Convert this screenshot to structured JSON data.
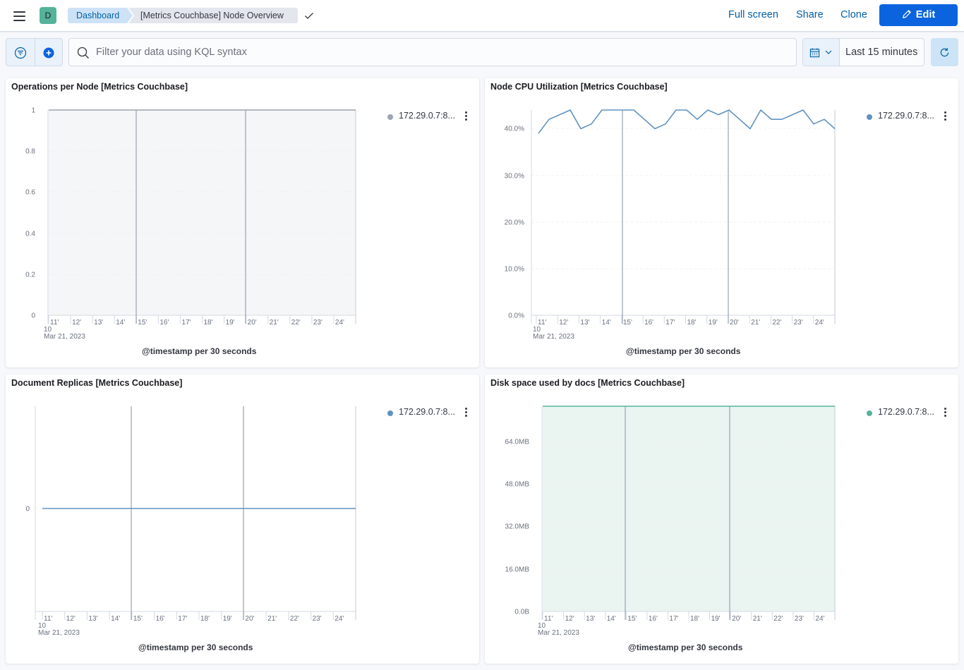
{
  "header": {
    "avatar_letter": "D",
    "breadcrumbs": [
      "Dashboard",
      "[Metrics Couchbase] Node Overview"
    ],
    "links": {
      "full_screen": "Full screen",
      "share": "Share",
      "clone": "Clone"
    },
    "edit_label": "Edit"
  },
  "query_bar": {
    "search_placeholder": "Filter your data using KQL syntax",
    "time_range": "Last 15 minutes"
  },
  "colors": {
    "accent": "#0b64dd",
    "series_gray": "#9ba4b0",
    "series_blue": "#6092c0",
    "series_green": "#54b399"
  },
  "panels": [
    {
      "title": "Operations per Node [Metrics Couchbase]",
      "legend_label": "172.29.0.7:8...",
      "x_axis_title": "@timestamp per 30 seconds"
    },
    {
      "title": "Node CPU Utilization [Metrics Couchbase]",
      "legend_label": "172.29.0.7:8...",
      "x_axis_title": "@timestamp per 30 seconds"
    },
    {
      "title": "Document Replicas [Metrics Couchbase]",
      "legend_label": "172.29.0.7:8...",
      "x_axis_title": "@timestamp per 30 seconds"
    },
    {
      "title": "Disk space used by docs [Metrics Couchbase]",
      "legend_label": "172.29.0.7:8...",
      "x_axis_title": "@timestamp per 30 seconds"
    }
  ],
  "chart_data": [
    {
      "type": "area",
      "title": "Operations per Node [Metrics Couchbase]",
      "xlabel": "@timestamp per 30 seconds",
      "x_ticks": [
        "11'",
        "12'",
        "13'",
        "14'",
        "15'",
        "16'",
        "17'",
        "18'",
        "19'",
        "20'",
        "21'",
        "22'",
        "23'",
        "24'"
      ],
      "x_date_label": [
        "10",
        "Mar 21, 2023"
      ],
      "y_ticks": [
        "0",
        "0.2",
        "0.4",
        "0.6",
        "0.8",
        "1"
      ],
      "ylim": [
        0,
        1
      ],
      "series": [
        {
          "name": "172.29.0.7:8...",
          "values": [
            1,
            1
          ]
        }
      ]
    },
    {
      "type": "line",
      "title": "Node CPU Utilization [Metrics Couchbase]",
      "xlabel": "@timestamp per 30 seconds",
      "x_ticks": [
        "11'",
        "12'",
        "13'",
        "14'",
        "15'",
        "16'",
        "17'",
        "18'",
        "19'",
        "20'",
        "21'",
        "22'",
        "23'",
        "24'"
      ],
      "x_date_label": [
        "10",
        "Mar 21, 2023"
      ],
      "y_ticks": [
        "0.0%",
        "10.0%",
        "20.0%",
        "30.0%",
        "40.0%"
      ],
      "ylim": [
        0,
        0.44
      ],
      "series": [
        {
          "name": "172.29.0.7:8...",
          "values": [
            0.39,
            0.42,
            0.43,
            0.44,
            0.4,
            0.41,
            0.44,
            0.44,
            0.44,
            0.44,
            0.42,
            0.4,
            0.41,
            0.44,
            0.44,
            0.42,
            0.44,
            0.43,
            0.44,
            0.42,
            0.4,
            0.44,
            0.42,
            0.42,
            0.43,
            0.44,
            0.41,
            0.42,
            0.4
          ]
        }
      ]
    },
    {
      "type": "line",
      "title": "Document Replicas [Metrics Couchbase]",
      "xlabel": "@timestamp per 30 seconds",
      "x_ticks": [
        "11'",
        "12'",
        "13'",
        "14'",
        "15'",
        "16'",
        "17'",
        "18'",
        "19'",
        "20'",
        "21'",
        "22'",
        "23'",
        "24'"
      ],
      "x_date_label": [
        "10",
        "Mar 21, 2023"
      ],
      "y_ticks": [
        "0"
      ],
      "series": [
        {
          "name": "172.29.0.7:8...",
          "values": [
            0,
            0
          ]
        }
      ]
    },
    {
      "type": "area",
      "title": "Disk space used by docs [Metrics Couchbase]",
      "xlabel": "@timestamp per 30 seconds",
      "x_ticks": [
        "11'",
        "12'",
        "13'",
        "14'",
        "15'",
        "16'",
        "17'",
        "18'",
        "19'",
        "20'",
        "21'",
        "22'",
        "23'",
        "24'"
      ],
      "x_date_label": [
        "10",
        "Mar 21, 2023"
      ],
      "y_ticks": [
        "0.0B",
        "16.0MB",
        "32.0MB",
        "48.0MB",
        "64.0MB"
      ],
      "ylim": [
        0,
        77
      ],
      "series": [
        {
          "name": "172.29.0.7:8...",
          "values": [
            77,
            77
          ]
        }
      ]
    }
  ]
}
